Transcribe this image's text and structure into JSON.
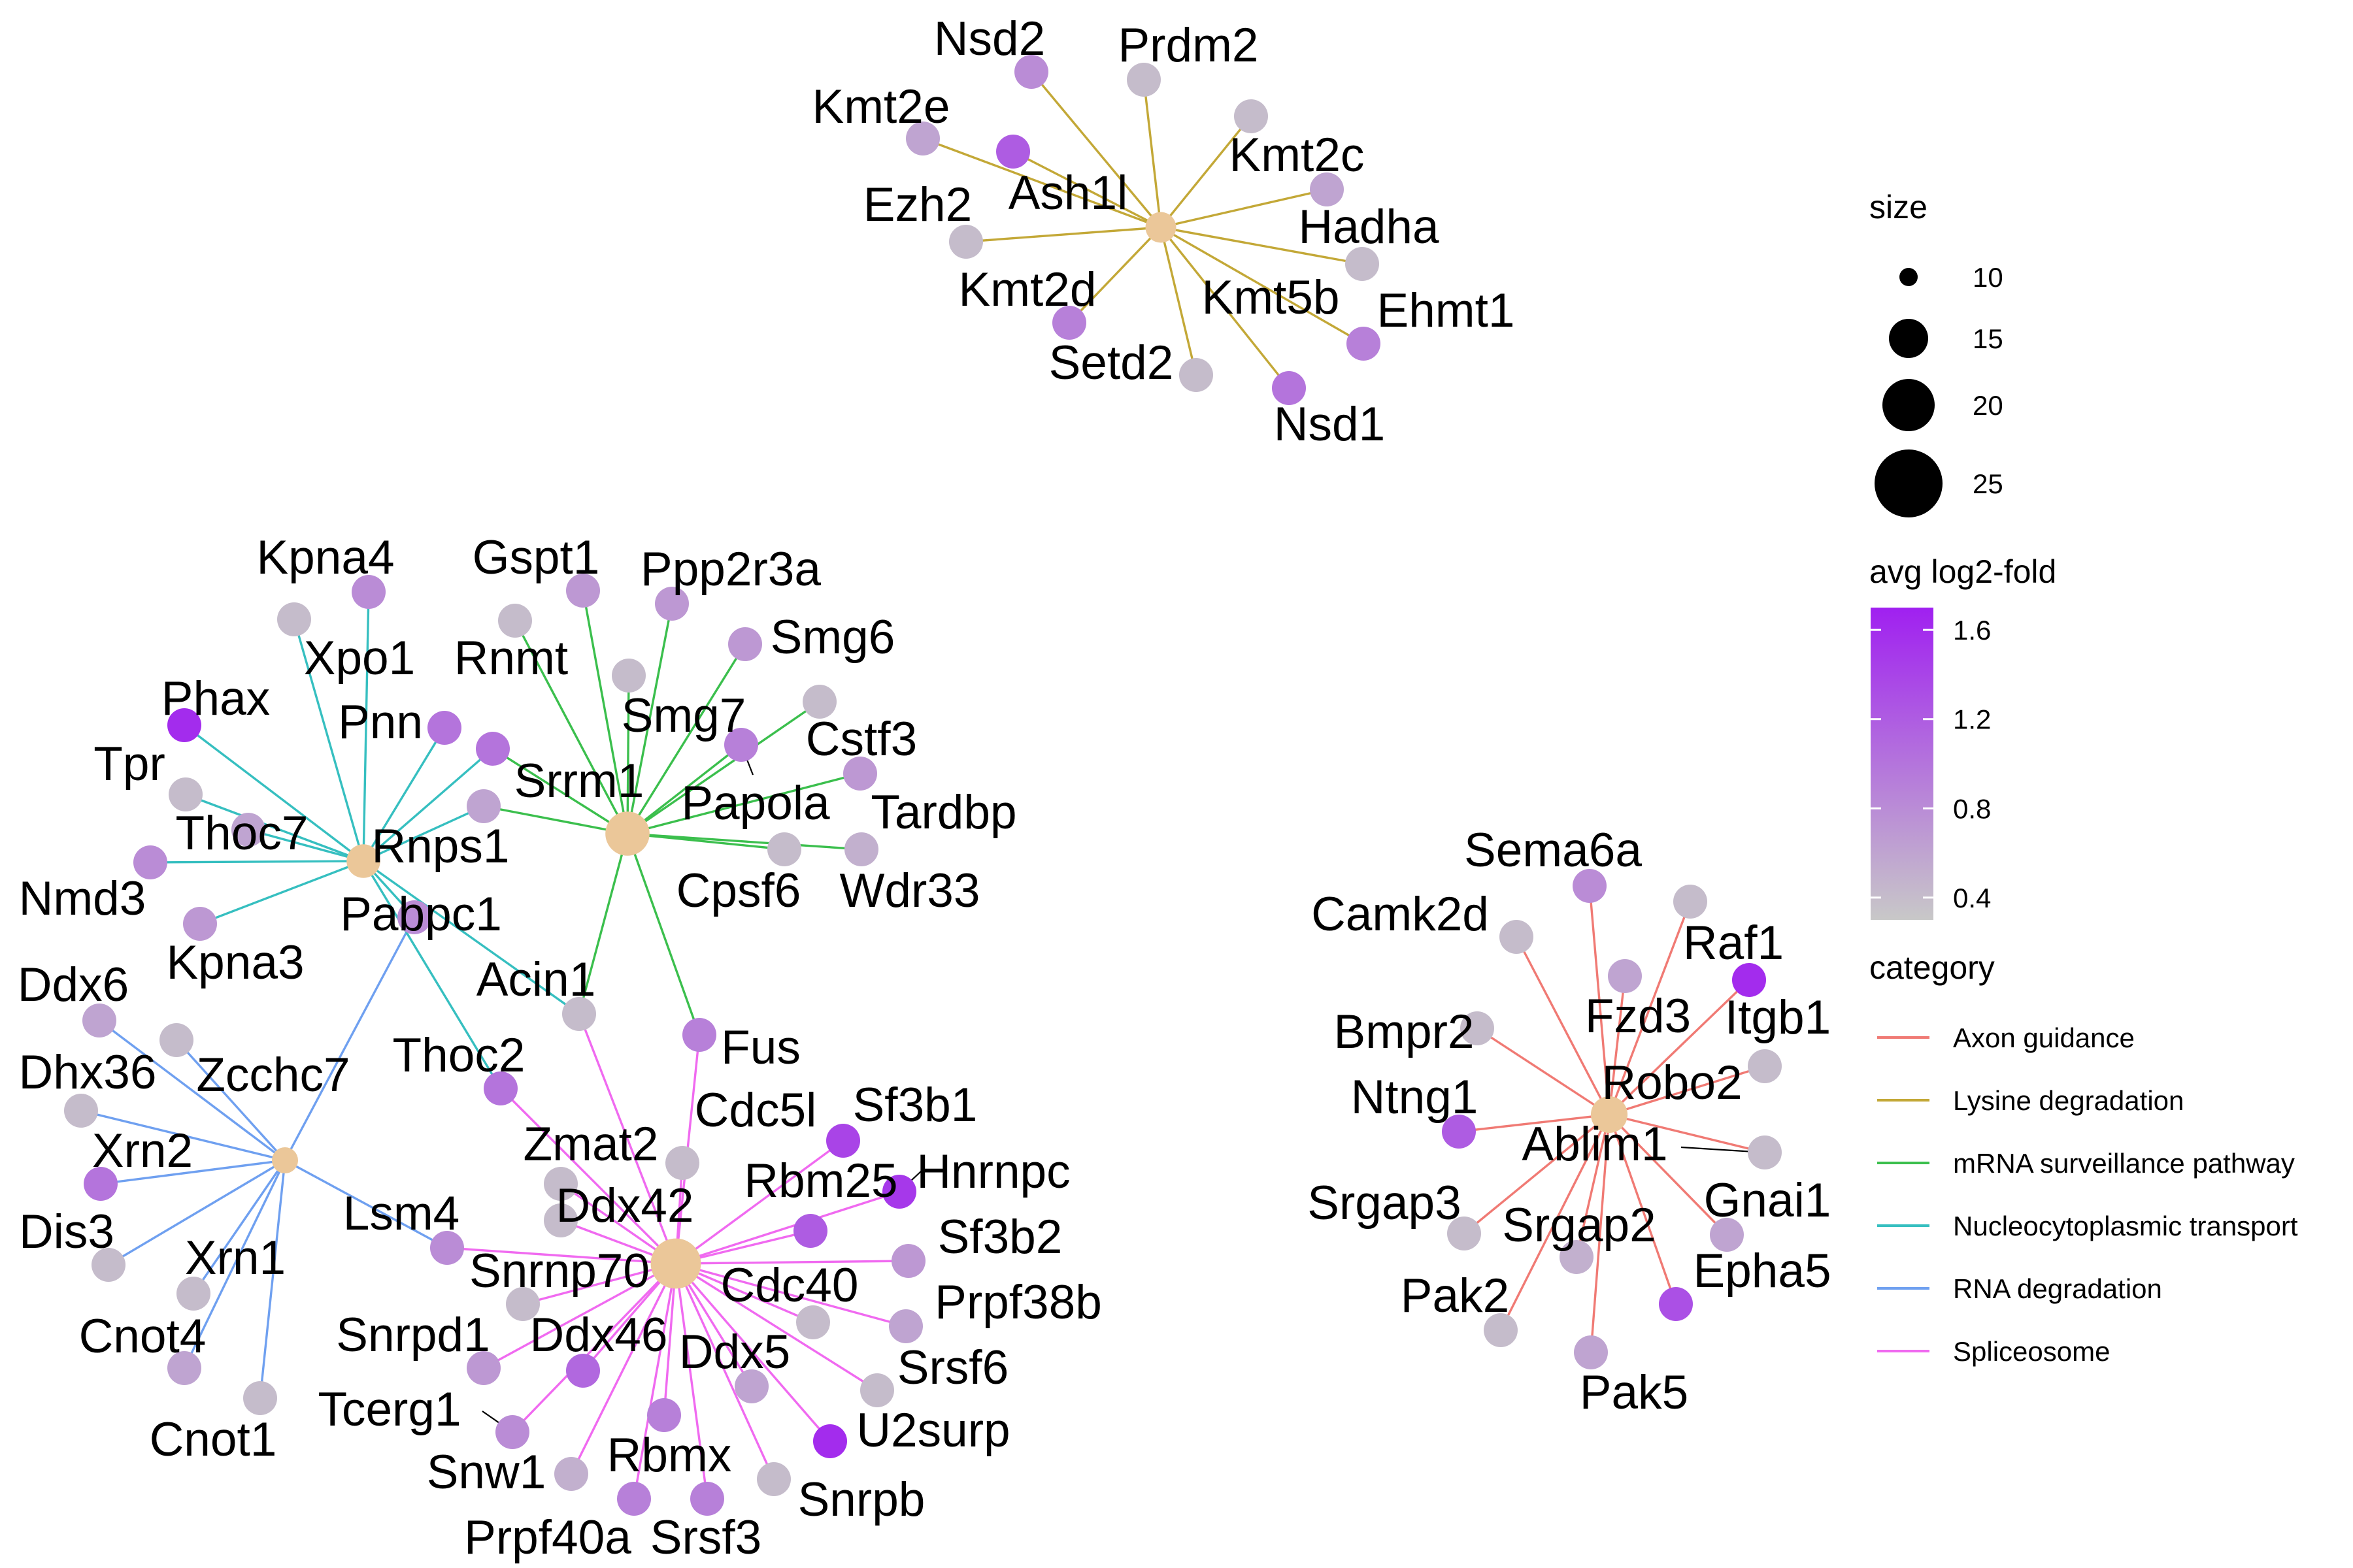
{
  "colors": {
    "hub": "#EBC799",
    "gene_min": "#C8C8C8",
    "gene_max": "#A020F0",
    "leader": "#000000"
  },
  "categories": [
    {
      "id": "axon",
      "label": "Axon guidance",
      "color": "#F07A74"
    },
    {
      "id": "lysine",
      "label": "Lysine degradation",
      "color": "#C3A837"
    },
    {
      "id": "mrna",
      "label": "mRNA surveillance pathway",
      "color": "#3BBF4D"
    },
    {
      "id": "nucleo",
      "label": "Nucleocytoplasmic transport",
      "color": "#36BFC0"
    },
    {
      "id": "rnadeg",
      "label": "RNA degradation",
      "color": "#6FA0F0"
    },
    {
      "id": "splice",
      "label": "Spliceosome",
      "color": "#F06AF0"
    }
  ],
  "legend": {
    "size": {
      "title": "size",
      "items": [
        {
          "label": "10",
          "value": 10
        },
        {
          "label": "15",
          "value": 15
        },
        {
          "label": "20",
          "value": 20
        },
        {
          "label": "25",
          "value": 25
        }
      ]
    },
    "color": {
      "title": "avg log2-fold",
      "ticks": [
        {
          "label": "1.6",
          "value": 1.6
        },
        {
          "label": "1.2",
          "value": 1.2
        },
        {
          "label": "0.8",
          "value": 0.8
        },
        {
          "label": "0.4",
          "value": 0.4
        }
      ],
      "min": 0.3,
      "max": 1.7
    },
    "category_title": "category"
  },
  "hubs": [
    {
      "id": "lysine",
      "category": "lysine",
      "size": 13
    },
    {
      "id": "mrna",
      "category": "mrna",
      "size": 22
    },
    {
      "id": "nucleo",
      "category": "nucleo",
      "size": 15
    },
    {
      "id": "rnadeg",
      "category": "rnadeg",
      "size": 10
    },
    {
      "id": "splice",
      "category": "splice",
      "size": 26
    },
    {
      "id": "axon",
      "category": "axon",
      "size": 17
    }
  ],
  "genes": [
    {
      "label": "Nsd2",
      "fc": 0.8
    },
    {
      "label": "Prdm2",
      "fc": 0.4
    },
    {
      "label": "Kmt2e",
      "fc": 0.6
    },
    {
      "label": "Kmt2c",
      "fc": 0.4
    },
    {
      "label": "Ash1l",
      "fc": 1.2
    },
    {
      "label": "Ezh2",
      "fc": 0.4
    },
    {
      "label": "Hadha",
      "fc": 0.6
    },
    {
      "label": "Kmt2d",
      "fc": 0.9
    },
    {
      "label": "Kmt5b",
      "fc": 0.4
    },
    {
      "label": "Ehmt1",
      "fc": 0.9
    },
    {
      "label": "Setd2",
      "fc": 0.4
    },
    {
      "label": "Nsd1",
      "fc": 1.0
    },
    {
      "label": "Kpna4",
      "fc": 0.8
    },
    {
      "label": "Gspt1",
      "fc": 0.7
    },
    {
      "label": "Ppp2r3a",
      "fc": 0.7
    },
    {
      "label": "Xpo1",
      "fc": 0.4
    },
    {
      "label": "Rnmt",
      "fc": 0.4
    },
    {
      "label": "Smg6",
      "fc": 0.7
    },
    {
      "label": "Phax",
      "fc": 1.6
    },
    {
      "label": "Pnn",
      "fc": 1.0
    },
    {
      "label": "Smg7",
      "fc": 0.4
    },
    {
      "label": "Cstf3",
      "fc": 0.4
    },
    {
      "label": "Tpr",
      "fc": 0.4
    },
    {
      "label": "Srrm1",
      "fc": 1.0
    },
    {
      "label": "Papola",
      "fc": 0.9
    },
    {
      "label": "Thoc7",
      "fc": 0.6
    },
    {
      "label": "Tardbp",
      "fc": 0.7
    },
    {
      "label": "Rnps1",
      "fc": 0.6
    },
    {
      "label": "Nmd3",
      "fc": 0.8
    },
    {
      "label": "Cpsf6",
      "fc": 0.4
    },
    {
      "label": "Wdr33",
      "fc": 0.5
    },
    {
      "label": "Kpna3",
      "fc": 0.7
    },
    {
      "label": "Pabpc1",
      "fc": 0.8
    },
    {
      "label": "Acin1",
      "fc": 0.4
    },
    {
      "label": "Fus",
      "fc": 0.9
    },
    {
      "label": "Ddx6",
      "fc": 0.6
    },
    {
      "label": "Zcchc7",
      "fc": 0.4
    },
    {
      "label": "Dhx36",
      "fc": 0.4
    },
    {
      "label": "Thoc2",
      "fc": 1.0
    },
    {
      "label": "Xrn2",
      "fc": 1.0
    },
    {
      "label": "Dis3",
      "fc": 0.4
    },
    {
      "label": "Xrn1",
      "fc": 0.4
    },
    {
      "label": "Cnot4",
      "fc": 0.6
    },
    {
      "label": "Cnot1",
      "fc": 0.4
    },
    {
      "label": "Zmat2",
      "fc": 0.4
    },
    {
      "label": "Cdc5l",
      "fc": 0.4
    },
    {
      "label": "Sf3b1",
      "fc": 1.4
    },
    {
      "label": "Ddx42",
      "fc": 0.4
    },
    {
      "label": "Rbm25",
      "fc": 1.2
    },
    {
      "label": "Hnrnpc",
      "fc": 1.5
    },
    {
      "label": "Lsm4",
      "fc": 0.8
    },
    {
      "label": "Sf3b2",
      "fc": 0.7
    },
    {
      "label": "Snrnp70",
      "fc": 0.4
    },
    {
      "label": "Cdc40",
      "fc": 0.4
    },
    {
      "label": "Prpf38b",
      "fc": 0.6
    },
    {
      "label": "Snrpd1",
      "fc": 0.7
    },
    {
      "label": "Ddx46",
      "fc": 1.1
    },
    {
      "label": "Ddx5",
      "fc": 0.6
    },
    {
      "label": "Srsf6",
      "fc": 0.4
    },
    {
      "label": "Tcerg1",
      "fc": 0.8
    },
    {
      "label": "Rbmx",
      "fc": 0.9
    },
    {
      "label": "U2surp",
      "fc": 1.6
    },
    {
      "label": "Snw1",
      "fc": 0.5
    },
    {
      "label": "Snrpb",
      "fc": 0.4
    },
    {
      "label": "Prpf40a",
      "fc": 0.9
    },
    {
      "label": "Srsf3",
      "fc": 0.9
    },
    {
      "label": "Sema6a",
      "fc": 0.8
    },
    {
      "label": "Camk2d",
      "fc": 0.4
    },
    {
      "label": "Raf1",
      "fc": 0.4
    },
    {
      "label": "Fzd3",
      "fc": 0.6
    },
    {
      "label": "Itgb1",
      "fc": 1.6
    },
    {
      "label": "Bmpr2",
      "fc": 0.4
    },
    {
      "label": "Robo2",
      "fc": 0.4
    },
    {
      "label": "Ntng1",
      "fc": 1.2
    },
    {
      "label": "Ablim1",
      "fc": 0.4
    },
    {
      "label": "Gnai1",
      "fc": 0.6
    },
    {
      "label": "Srgap3",
      "fc": 0.4
    },
    {
      "label": "Srgap2",
      "fc": 0.5
    },
    {
      "label": "Epha5",
      "fc": 1.3
    },
    {
      "label": "Pak2",
      "fc": 0.4
    },
    {
      "label": "Pak5",
      "fc": 0.6
    }
  ]
}
